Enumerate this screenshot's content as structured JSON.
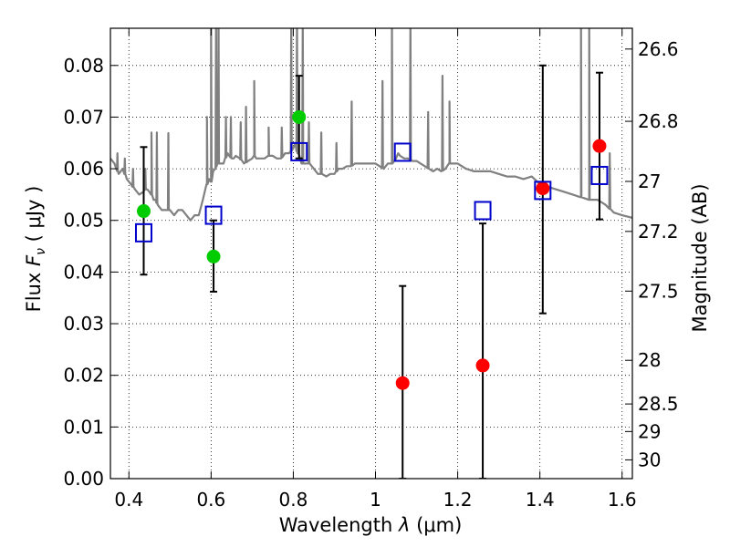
{
  "chart_data": {
    "type": "scatter",
    "xlabel_prefix": "Wavelength  ",
    "xlabel_symbol": "λ",
    "xlabel_unit": "(μm)",
    "ylabel_prefix": "Flux  ",
    "ylabel_symbol": "F",
    "ylabel_subscript": "ν",
    "ylabel_unit": "( μJy )",
    "y2label": "Magnitude (AB)",
    "xlim": [
      0.355,
      1.625
    ],
    "ylim": [
      0.0,
      0.0872
    ],
    "grid": true,
    "x_ticks": [
      {
        "value": 0.4,
        "label": "0.4"
      },
      {
        "value": 0.6,
        "label": "0.6"
      },
      {
        "value": 0.8,
        "label": "0.8"
      },
      {
        "value": 1.0,
        "label": "1"
      },
      {
        "value": 1.2,
        "label": "1.2"
      },
      {
        "value": 1.4,
        "label": "1.4"
      },
      {
        "value": 1.6,
        "label": "1.6"
      }
    ],
    "y_ticks": [
      {
        "value": 0.0,
        "label": "0.00"
      },
      {
        "value": 0.01,
        "label": "0.01"
      },
      {
        "value": 0.02,
        "label": "0.02"
      },
      {
        "value": 0.03,
        "label": "0.03"
      },
      {
        "value": 0.04,
        "label": "0.04"
      },
      {
        "value": 0.05,
        "label": "0.05"
      },
      {
        "value": 0.06,
        "label": "0.06"
      },
      {
        "value": 0.07,
        "label": "0.07"
      },
      {
        "value": 0.08,
        "label": "0.08"
      }
    ],
    "y2_ticks": [
      {
        "mag": 26.6,
        "label": "26.6"
      },
      {
        "mag": 26.8,
        "label": "26.8"
      },
      {
        "mag": 27.0,
        "label": "27"
      },
      {
        "mag": 27.2,
        "label": "27.2"
      },
      {
        "mag": 27.5,
        "label": "27.5"
      },
      {
        "mag": 28.0,
        "label": "28"
      },
      {
        "mag": 28.5,
        "label": "28.5"
      },
      {
        "mag": 29.0,
        "label": "29"
      },
      {
        "mag": 30.0,
        "label": "30"
      }
    ],
    "model_spectrum": {
      "color": "#808080",
      "x": [
        0.355,
        0.365,
        0.375,
        0.385,
        0.395,
        0.405,
        0.415,
        0.425,
        0.435,
        0.44,
        0.445,
        0.45,
        0.455,
        0.46,
        0.465,
        0.47,
        0.48,
        0.49,
        0.5,
        0.51,
        0.52,
        0.53,
        0.54,
        0.55,
        0.56,
        0.57,
        0.58,
        0.59,
        0.595,
        0.6,
        0.605,
        0.61,
        0.615,
        0.62,
        0.63,
        0.64,
        0.65,
        0.655,
        0.66,
        0.67,
        0.68,
        0.69,
        0.7,
        0.705,
        0.71,
        0.72,
        0.73,
        0.74,
        0.75,
        0.76,
        0.77,
        0.78,
        0.79,
        0.8,
        0.805,
        0.81,
        0.815,
        0.82,
        0.83,
        0.84,
        0.85,
        0.86,
        0.87,
        0.88,
        0.89,
        0.9,
        0.91,
        0.92,
        0.93,
        0.94,
        0.95,
        0.96,
        0.97,
        0.98,
        0.99,
        1.0,
        1.01,
        1.02,
        1.03,
        1.04,
        1.05,
        1.055,
        1.06,
        1.07,
        1.08,
        1.09,
        1.1,
        1.11,
        1.12,
        1.13,
        1.14,
        1.15,
        1.16,
        1.17,
        1.18,
        1.19,
        1.2,
        1.22,
        1.24,
        1.26,
        1.28,
        1.3,
        1.32,
        1.34,
        1.36,
        1.38,
        1.4,
        1.42,
        1.44,
        1.46,
        1.48,
        1.5,
        1.52,
        1.54,
        1.56,
        1.58,
        1.6,
        1.625
      ],
      "y": [
        0.062,
        0.061,
        0.059,
        0.06,
        0.058,
        0.057,
        0.056,
        0.055,
        0.0555,
        0.056,
        0.056,
        0.0555,
        0.055,
        0.054,
        0.054,
        0.053,
        0.052,
        0.052,
        0.052,
        0.051,
        0.052,
        0.052,
        0.051,
        0.05,
        0.051,
        0.051,
        0.054,
        0.057,
        0.058,
        0.0575,
        0.0595,
        0.06,
        0.061,
        0.061,
        0.061,
        0.063,
        0.062,
        0.062,
        0.0625,
        0.062,
        0.061,
        0.0615,
        0.062,
        0.0625,
        0.062,
        0.062,
        0.062,
        0.0625,
        0.0625,
        0.062,
        0.062,
        0.063,
        0.063,
        0.064,
        0.065,
        0.063,
        0.0625,
        0.061,
        0.061,
        0.061,
        0.06,
        0.059,
        0.059,
        0.0585,
        0.059,
        0.059,
        0.06,
        0.06,
        0.0605,
        0.0605,
        0.061,
        0.061,
        0.061,
        0.061,
        0.061,
        0.061,
        0.0605,
        0.06,
        0.061,
        0.061,
        0.062,
        0.063,
        0.0625,
        0.062,
        0.062,
        0.0615,
        0.0615,
        0.061,
        0.0605,
        0.06,
        0.0595,
        0.06,
        0.0595,
        0.06,
        0.061,
        0.061,
        0.061,
        0.06,
        0.0595,
        0.0595,
        0.0595,
        0.059,
        0.0585,
        0.0585,
        0.058,
        0.0585,
        0.057,
        0.0565,
        0.056,
        0.0555,
        0.055,
        0.0545,
        0.054,
        0.054,
        0.053,
        0.0515,
        0.051,
        0.0505
      ]
    },
    "emission_lines": [
      {
        "x": 0.372,
        "peak": 0.063
      },
      {
        "x": 0.39,
        "peak": 0.062
      },
      {
        "x": 0.41,
        "peak": 0.06
      },
      {
        "x": 0.44,
        "peak": 0.06
      },
      {
        "x": 0.455,
        "peak": 0.067
      },
      {
        "x": 0.468,
        "peak": 0.067
      },
      {
        "x": 0.496,
        "peak": 0.0669
      },
      {
        "x": 0.59,
        "peak": 0.07
      },
      {
        "x": 0.6,
        "peak": 0.09
      },
      {
        "x": 0.612,
        "peak": 0.09
      },
      {
        "x": 0.618,
        "peak": 0.09
      },
      {
        "x": 0.636,
        "peak": 0.07
      },
      {
        "x": 0.648,
        "peak": 0.07
      },
      {
        "x": 0.672,
        "peak": 0.069
      },
      {
        "x": 0.685,
        "peak": 0.072
      },
      {
        "x": 0.705,
        "peak": 0.077
      },
      {
        "x": 0.74,
        "peak": 0.068
      },
      {
        "x": 0.772,
        "peak": 0.068
      },
      {
        "x": 0.795,
        "peak": 0.09
      },
      {
        "x": 0.809,
        "peak": 0.09
      },
      {
        "x": 0.823,
        "peak": 0.09
      },
      {
        "x": 0.838,
        "peak": 0.069
      },
      {
        "x": 0.868,
        "peak": 0.067
      },
      {
        "x": 0.905,
        "peak": 0.065
      },
      {
        "x": 0.942,
        "peak": 0.073
      },
      {
        "x": 1.017,
        "peak": 0.077
      },
      {
        "x": 1.04,
        "peak": 0.09
      },
      {
        "x": 1.085,
        "peak": 0.09
      },
      {
        "x": 1.128,
        "peak": 0.071
      },
      {
        "x": 1.163,
        "peak": 0.078
      },
      {
        "x": 1.18,
        "peak": 0.073
      },
      {
        "x": 1.5,
        "peak": 0.09
      },
      {
        "x": 1.52,
        "peak": 0.09
      },
      {
        "x": 1.57,
        "peak": 0.063
      }
    ],
    "points": [
      {
        "x": 0.436,
        "y": 0.0518,
        "err_lo": 0.0395,
        "err_hi": 0.0642,
        "color": "#00cc00",
        "model": 0.0476
      },
      {
        "x": 0.606,
        "y": 0.043,
        "err_lo": 0.0362,
        "err_hi": 0.05,
        "color": "#00cc00",
        "model": 0.051
      },
      {
        "x": 0.814,
        "y": 0.07,
        "err_lo": 0.062,
        "err_hi": 0.078,
        "color": "#00cc00",
        "model": 0.0633
      },
      {
        "x": 1.066,
        "y": 0.0185,
        "err_lo": 0.0,
        "err_hi": 0.0373,
        "color": "#ff0000",
        "model": 0.0632
      },
      {
        "x": 1.261,
        "y": 0.0219,
        "err_lo": 0.0,
        "err_hi": 0.0494,
        "color": "#ff0000",
        "model": 0.0519
      },
      {
        "x": 1.407,
        "y": 0.0562,
        "err_lo": 0.032,
        "err_hi": 0.08,
        "color": "#ff0000",
        "model": 0.0558
      },
      {
        "x": 1.545,
        "y": 0.0644,
        "err_lo": 0.0502,
        "err_hi": 0.0786,
        "color": "#ff0000",
        "model": 0.0587
      }
    ],
    "model_marker_color": "#0000cc"
  }
}
